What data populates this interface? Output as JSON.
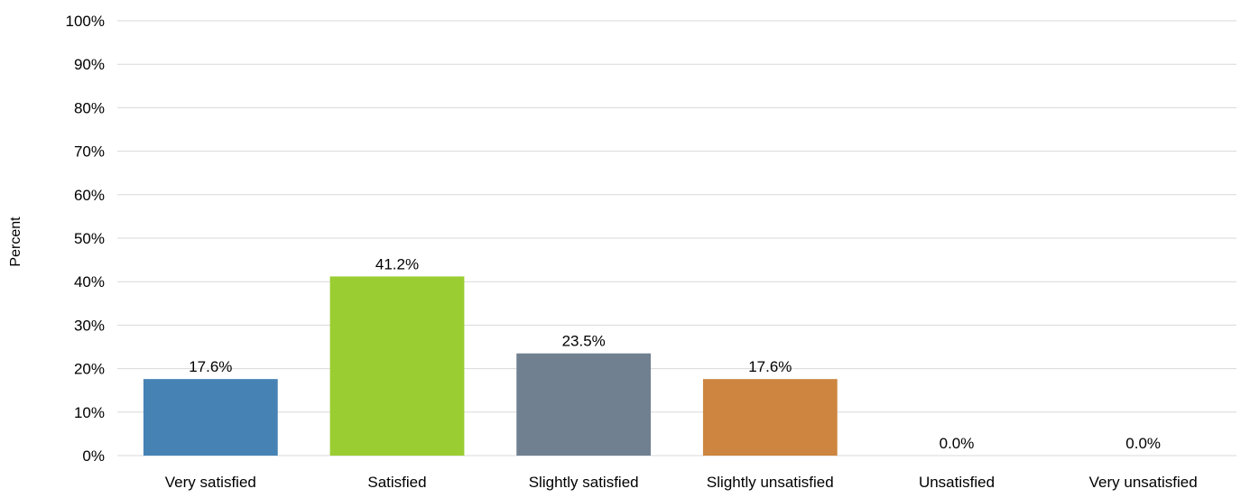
{
  "chart_data": {
    "type": "bar",
    "categories": [
      "Very satisfied",
      "Satisfied",
      "Slightly satisfied",
      "Slightly unsatisfied",
      "Unsatisfied",
      "Very unsatisfied"
    ],
    "values": [
      17.6,
      41.2,
      23.5,
      17.6,
      0.0,
      0.0
    ],
    "data_labels": [
      "17.6%",
      "41.2%",
      "23.5%",
      "17.6%",
      "0.0%",
      "0.0%"
    ],
    "colors": [
      "#4682b4",
      "#9acd32",
      "#708090",
      "#cd853f",
      "#6b8e23",
      "#4b0082"
    ],
    "ylabel": "Percent",
    "ylim": [
      0,
      100
    ],
    "yticks": [
      0,
      10,
      20,
      30,
      40,
      50,
      60,
      70,
      80,
      90,
      100
    ],
    "ytick_labels": [
      "0%",
      "10%",
      "20%",
      "30%",
      "40%",
      "50%",
      "60%",
      "70%",
      "80%",
      "90%",
      "100%"
    ],
    "grid": true,
    "legend": "none"
  }
}
